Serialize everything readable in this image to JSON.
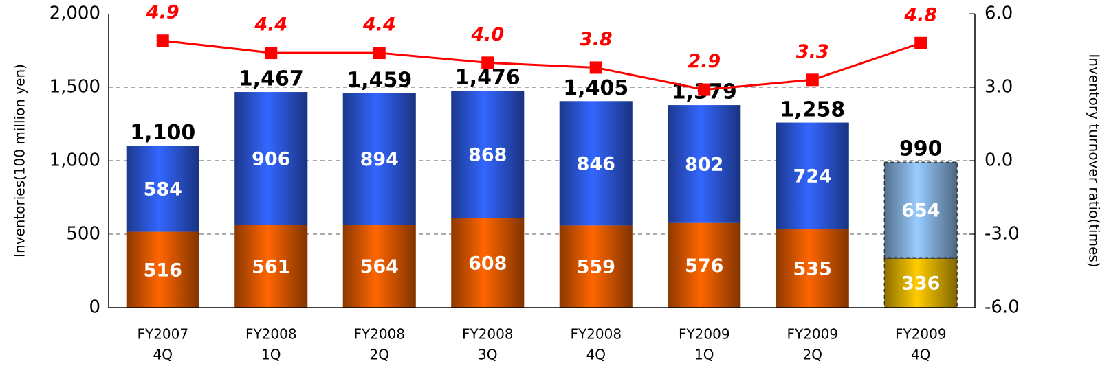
{
  "chart_data": {
    "type": "bar",
    "categories": [
      [
        "FY2007",
        "4Q"
      ],
      [
        "FY2008",
        "1Q"
      ],
      [
        "FY2008",
        "2Q"
      ],
      [
        "FY2008",
        "3Q"
      ],
      [
        "FY2008",
        "4Q"
      ],
      [
        "FY2009",
        "1Q"
      ],
      [
        "FY2009",
        "2Q"
      ],
      [
        "FY2009",
        "4Q"
      ]
    ],
    "series": [
      {
        "color": "#ff6600",
        "colors": [
          "#ff6600",
          "#ff6600",
          "#ff6600",
          "#ff6600",
          "#ff6600",
          "#ff6600",
          "#ff6600",
          "#ffcc00"
        ],
        "values": [
          516,
          561,
          564,
          608,
          559,
          576,
          535,
          336
        ]
      },
      {
        "color": "#3366ff",
        "colors": [
          "#3366ff",
          "#3366ff",
          "#3366ff",
          "#3366ff",
          "#3366ff",
          "#3366ff",
          "#3366ff",
          "#99ccff"
        ],
        "values": [
          584,
          906,
          894,
          868,
          846,
          802,
          724,
          654
        ]
      }
    ],
    "totals": [
      1100,
      1467,
      1459,
      1476,
      1405,
      1379,
      1258,
      990
    ],
    "total_labels": [
      "1,100",
      "1,467",
      "1,459",
      "1,476",
      "1,405",
      "1,379",
      "1,258",
      "990"
    ],
    "line": {
      "type": "line",
      "axis": "y2",
      "color": "#ff0000",
      "values": [
        4.9,
        4.4,
        4.4,
        4.0,
        3.8,
        2.9,
        3.3,
        4.8
      ],
      "value_labels": [
        "4.9",
        "4.4",
        "4.4",
        "4.0",
        "3.8",
        "2.9",
        "3.3",
        "4.8"
      ]
    },
    "ylabel": "Inventories(100 million yen)",
    "y2label": "Inventory turnover ratio(times)",
    "ylim": [
      0,
      2000
    ],
    "yticks": [
      0,
      500,
      {
        "value": 1000,
        "label": "1,000"
      },
      {
        "value": 1500,
        "label": "1,500"
      },
      {
        "value": 2000,
        "label": "2,000"
      }
    ],
    "y2lim": [
      -6,
      6
    ],
    "y2ticks": [
      {
        "value": -6,
        "label": "-6.0"
      },
      {
        "value": -3,
        "label": "-3.0"
      },
      {
        "value": 0,
        "label": "0.0"
      },
      {
        "value": 3,
        "label": "3.0"
      },
      {
        "value": 6,
        "label": "6.0"
      }
    ],
    "grid": true
  }
}
